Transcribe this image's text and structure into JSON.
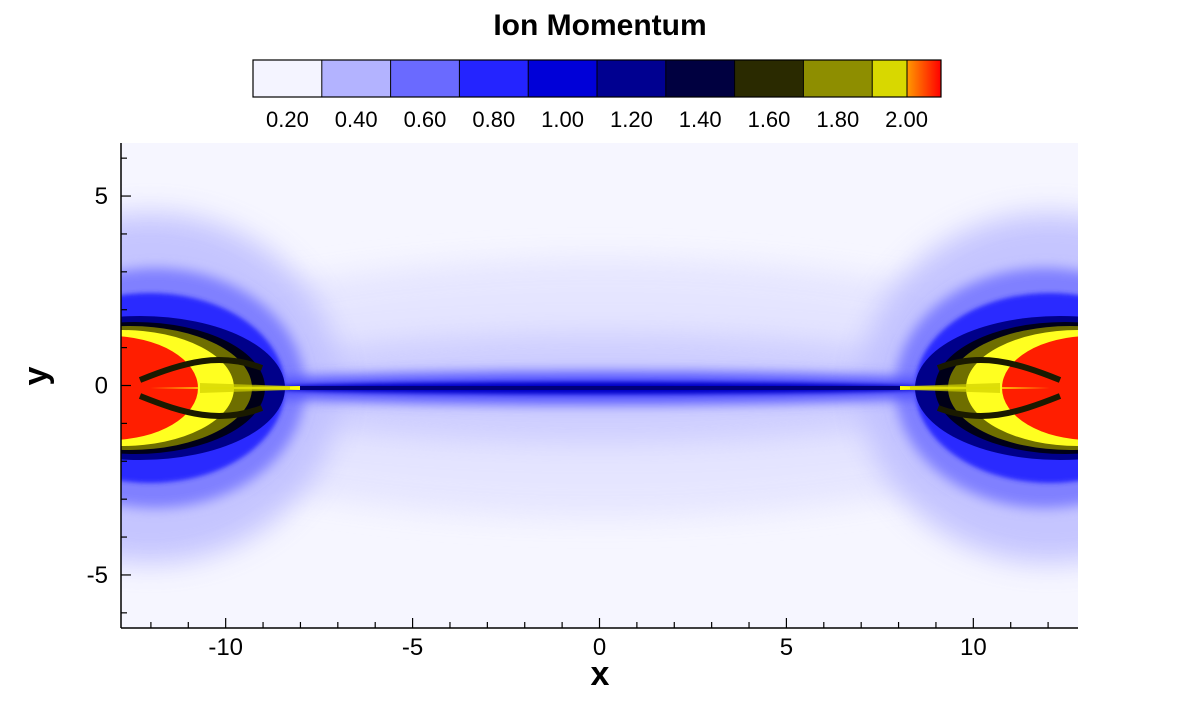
{
  "chart_data": {
    "type": "heatmap",
    "title": "Ion Momentum",
    "xlabel": "x",
    "ylabel": "y",
    "xlim": [
      -12.8,
      12.8
    ],
    "ylim": [
      -6.4,
      6.4
    ],
    "x_ticks": [
      -10,
      -5,
      0,
      5,
      10
    ],
    "x_tick_labels": [
      "-10",
      "-5",
      "0",
      "5",
      "10"
    ],
    "y_ticks": [
      5,
      0,
      -5
    ],
    "y_tick_labels": [
      "5",
      "0",
      "-5"
    ],
    "colorbar": {
      "range": [
        0.1,
        2.1
      ],
      "levels": [
        0.1,
        0.3,
        0.5,
        0.7,
        0.9,
        1.1,
        1.3,
        1.5,
        1.7,
        1.9,
        2.1
      ],
      "tick_values": [
        0.2,
        0.4,
        0.6,
        0.8,
        1.0,
        1.2,
        1.4,
        1.6,
        1.8,
        2.0
      ],
      "tick_labels": [
        "0.20",
        "0.40",
        "0.60",
        "0.80",
        "1.00",
        "1.20",
        "1.40",
        "1.60",
        "1.80",
        "2.00"
      ],
      "colors": [
        "#f4f4ff",
        "#b3b3ff",
        "#6a6aff",
        "#2424ff",
        "#0000d8",
        "#000090",
        "#000040",
        "#2a2a00",
        "#8e8e00",
        "#d8d800",
        "#ffff10",
        "#ff3000"
      ]
    },
    "features": [
      {
        "name": "central current sheet",
        "x_range": [
          -8.5,
          8.5
        ],
        "y": 0,
        "value_range": [
          0.8,
          1.4
        ]
      },
      {
        "name": "left outflow jet",
        "x_range": [
          -12.8,
          -8.2
        ],
        "y_range": [
          -1.8,
          1.8
        ],
        "value_range": [
          1.4,
          2.1
        ]
      },
      {
        "name": "right outflow jet",
        "x_range": [
          8.2,
          12.8
        ],
        "y_range": [
          -1.8,
          1.8
        ],
        "value_range": [
          1.4,
          2.1
        ]
      }
    ]
  }
}
